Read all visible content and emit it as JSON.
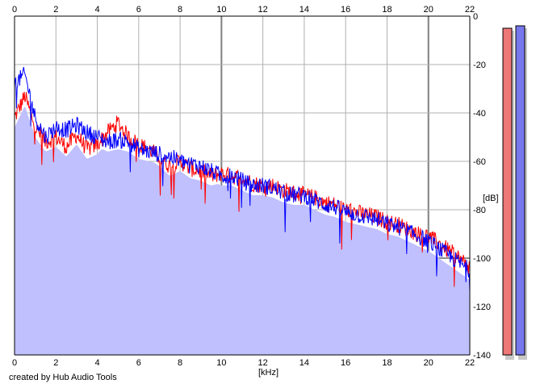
{
  "chart_data": {
    "type": "area",
    "xlabel": "[kHz]",
    "ylabel": "[dB]",
    "xlim": [
      0,
      22
    ],
    "ylim": [
      -140,
      0
    ],
    "x_ticks": [
      0,
      2,
      4,
      6,
      8,
      10,
      12,
      14,
      16,
      18,
      20,
      22
    ],
    "y_ticks": [
      0,
      -20,
      -40,
      -60,
      -80,
      -100,
      -120,
      -140
    ],
    "y_tick_labels": [
      "0",
      "-20",
      "-40",
      "-60",
      "-80",
      "-100",
      "-120",
      "-140"
    ],
    "grid": true,
    "fill_color": "#c0c0ff",
    "series": [
      {
        "color": "#ff0000",
        "x": [
          0,
          0.5,
          1,
          1.5,
          2,
          2.5,
          3,
          3.5,
          4,
          4.5,
          5,
          5.5,
          6,
          6.5,
          7,
          7.5,
          8,
          8.5,
          9,
          9.5,
          10,
          10.5,
          11,
          11.5,
          12,
          12.5,
          13,
          13.5,
          14,
          14.5,
          15,
          15.5,
          16,
          16.5,
          17,
          17.5,
          18,
          18.5,
          19,
          19.5,
          20,
          20.5,
          21,
          21.5,
          22
        ],
        "y": [
          -42,
          -33,
          -46,
          -52,
          -50,
          -54,
          -49,
          -55,
          -53,
          -48,
          -44,
          -50,
          -53,
          -55,
          -58,
          -62,
          -60,
          -63,
          -64,
          -66,
          -65,
          -66,
          -67,
          -69,
          -70,
          -70,
          -72,
          -73,
          -74,
          -75,
          -77,
          -78,
          -80,
          -81,
          -82,
          -83,
          -85,
          -86,
          -88,
          -90,
          -91,
          -94,
          -97,
          -100,
          -104
        ]
      },
      {
        "color": "#0000ff",
        "x": [
          0,
          0.5,
          1,
          1.5,
          2,
          2.5,
          3,
          3.5,
          4,
          4.5,
          5,
          5.5,
          6,
          6.5,
          7,
          7.5,
          8,
          8.5,
          9,
          9.5,
          10,
          10.5,
          11,
          11.5,
          12,
          12.5,
          13,
          13.5,
          14,
          14.5,
          15,
          15.5,
          16,
          16.5,
          17,
          17.5,
          18,
          18.5,
          19,
          19.5,
          20,
          20.5,
          21,
          21.5,
          22
        ],
        "y": [
          -28,
          -24,
          -42,
          -50,
          -46,
          -47,
          -45,
          -48,
          -50,
          -52,
          -51,
          -52,
          -55,
          -56,
          -57,
          -58,
          -60,
          -61,
          -62,
          -64,
          -66,
          -66,
          -68,
          -70,
          -70,
          -71,
          -73,
          -74,
          -74,
          -76,
          -78,
          -79,
          -81,
          -82,
          -83,
          -84,
          -86,
          -87,
          -89,
          -91,
          -93,
          -96,
          -99,
          -102,
          -105
        ]
      }
    ],
    "level_meters": [
      {
        "color": "#ee7777",
        "level_db": -5
      },
      {
        "color": "#7777ee",
        "level_db": -4
      }
    ]
  },
  "footer": {
    "credit": "created by Hub Audio Tools"
  }
}
